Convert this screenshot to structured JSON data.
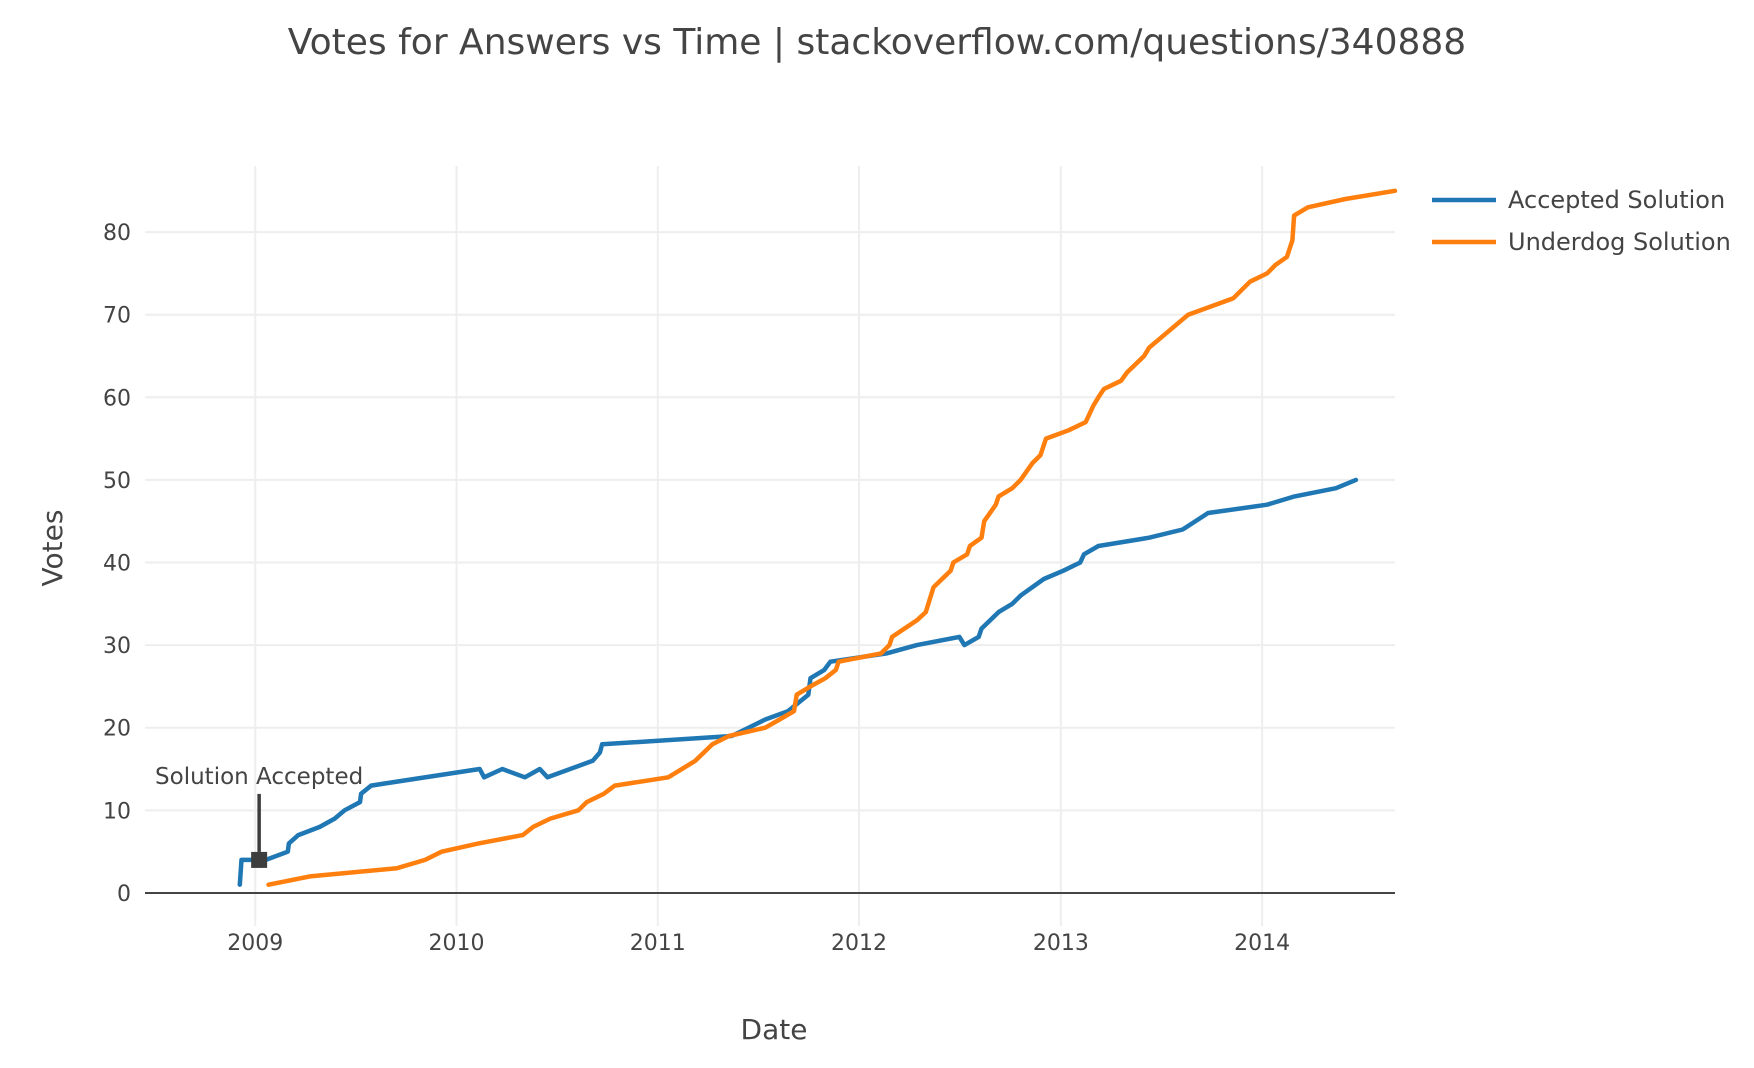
{
  "chart_data": {
    "type": "line",
    "title": "Votes for Answers vs Time | stackoverflow.com/questions/340888",
    "xlabel": "Date",
    "ylabel": "Votes",
    "xlim": [
      "2008-06-15",
      "2014-08-30"
    ],
    "ylim": [
      -4,
      88
    ],
    "x_ticks": [
      "2009",
      "2010",
      "2011",
      "2012",
      "2013",
      "2014"
    ],
    "y_ticks": [
      0,
      10,
      20,
      30,
      40,
      50,
      60,
      70,
      80
    ],
    "grid": true,
    "legend_position": "top-right",
    "series": [
      {
        "name": "Accepted Solution",
        "color": "#1f77b4",
        "points": [
          [
            "2008-12-04",
            1
          ],
          [
            "2008-12-07",
            4
          ],
          [
            "2009-01-20",
            4
          ],
          [
            "2009-03-01",
            5
          ],
          [
            "2009-03-03",
            6
          ],
          [
            "2009-03-20",
            7
          ],
          [
            "2009-04-28",
            8
          ],
          [
            "2009-05-25",
            9
          ],
          [
            "2009-06-12",
            10
          ],
          [
            "2009-07-10",
            11
          ],
          [
            "2009-07-12",
            12
          ],
          [
            "2009-07-30",
            13
          ],
          [
            "2010-02-12",
            15
          ],
          [
            "2010-02-20",
            14
          ],
          [
            "2010-03-25",
            15
          ],
          [
            "2010-05-05",
            14
          ],
          [
            "2010-06-01",
            15
          ],
          [
            "2010-06-15",
            14
          ],
          [
            "2010-09-05",
            16
          ],
          [
            "2010-09-18",
            17
          ],
          [
            "2010-09-22",
            18
          ],
          [
            "2011-05-15",
            19
          ],
          [
            "2011-06-15",
            20
          ],
          [
            "2011-07-15",
            21
          ],
          [
            "2011-08-25",
            22
          ],
          [
            "2011-10-01",
            24
          ],
          [
            "2011-10-05",
            26
          ],
          [
            "2011-10-30",
            27
          ],
          [
            "2011-11-10",
            28
          ],
          [
            "2012-02-20",
            29
          ],
          [
            "2012-04-15",
            30
          ],
          [
            "2012-07-01",
            31
          ],
          [
            "2012-07-10",
            30
          ],
          [
            "2012-08-05",
            31
          ],
          [
            "2012-08-10",
            32
          ],
          [
            "2012-09-10",
            34
          ],
          [
            "2012-10-05",
            35
          ],
          [
            "2012-10-20",
            36
          ],
          [
            "2012-12-01",
            38
          ],
          [
            "2013-01-05",
            39
          ],
          [
            "2013-02-05",
            40
          ],
          [
            "2013-02-12",
            41
          ],
          [
            "2013-03-10",
            42
          ],
          [
            "2013-06-10",
            43
          ],
          [
            "2013-08-10",
            44
          ],
          [
            "2013-09-25",
            46
          ],
          [
            "2014-01-10",
            47
          ],
          [
            "2014-03-01",
            48
          ],
          [
            "2014-05-15",
            49
          ],
          [
            "2014-06-20",
            50
          ]
        ]
      },
      {
        "name": "Underdog Solution",
        "color": "#ff7f0e",
        "points": [
          [
            "2009-01-25",
            1
          ],
          [
            "2009-04-10",
            2
          ],
          [
            "2009-09-15",
            3
          ],
          [
            "2009-11-05",
            4
          ],
          [
            "2009-12-05",
            5
          ],
          [
            "2010-02-10",
            6
          ],
          [
            "2010-05-01",
            7
          ],
          [
            "2010-05-20",
            8
          ],
          [
            "2010-06-20",
            9
          ],
          [
            "2010-08-10",
            10
          ],
          [
            "2010-08-25",
            11
          ],
          [
            "2010-09-25",
            12
          ],
          [
            "2010-10-15",
            13
          ],
          [
            "2011-01-20",
            14
          ],
          [
            "2011-03-10",
            16
          ],
          [
            "2011-04-10",
            18
          ],
          [
            "2011-05-10",
            19
          ],
          [
            "2011-07-15",
            20
          ],
          [
            "2011-08-10",
            21
          ],
          [
            "2011-09-05",
            22
          ],
          [
            "2011-09-10",
            24
          ],
          [
            "2011-10-05",
            25
          ],
          [
            "2011-11-01",
            26
          ],
          [
            "2011-11-20",
            27
          ],
          [
            "2011-11-25",
            28
          ],
          [
            "2012-02-10",
            29
          ],
          [
            "2012-02-25",
            30
          ],
          [
            "2012-03-01",
            31
          ],
          [
            "2012-04-15",
            33
          ],
          [
            "2012-05-01",
            34
          ],
          [
            "2012-05-15",
            37
          ],
          [
            "2012-06-15",
            39
          ],
          [
            "2012-06-20",
            40
          ],
          [
            "2012-07-15",
            41
          ],
          [
            "2012-07-20",
            42
          ],
          [
            "2012-08-10",
            43
          ],
          [
            "2012-08-15",
            45
          ],
          [
            "2012-09-05",
            47
          ],
          [
            "2012-09-10",
            48
          ],
          [
            "2012-10-05",
            49
          ],
          [
            "2012-10-20",
            50
          ],
          [
            "2012-11-10",
            52
          ],
          [
            "2012-11-25",
            53
          ],
          [
            "2012-12-05",
            55
          ],
          [
            "2013-01-15",
            56
          ],
          [
            "2013-02-15",
            57
          ],
          [
            "2013-03-01",
            59
          ],
          [
            "2013-03-10",
            60
          ],
          [
            "2013-03-20",
            61
          ],
          [
            "2013-04-20",
            62
          ],
          [
            "2013-05-01",
            63
          ],
          [
            "2013-06-01",
            65
          ],
          [
            "2013-06-10",
            66
          ],
          [
            "2013-08-20",
            70
          ],
          [
            "2013-11-10",
            72
          ],
          [
            "2013-12-10",
            74
          ],
          [
            "2014-01-10",
            75
          ],
          [
            "2014-01-25",
            76
          ],
          [
            "2014-02-15",
            77
          ],
          [
            "2014-02-25",
            79
          ],
          [
            "2014-02-28",
            82
          ],
          [
            "2014-03-25",
            83
          ],
          [
            "2014-06-01",
            84
          ],
          [
            "2014-08-30",
            85
          ]
        ]
      }
    ],
    "annotations": [
      {
        "text": "Solution Accepted",
        "x": "2009-01-08",
        "y": 4,
        "color": "#3d3d3d"
      }
    ]
  }
}
